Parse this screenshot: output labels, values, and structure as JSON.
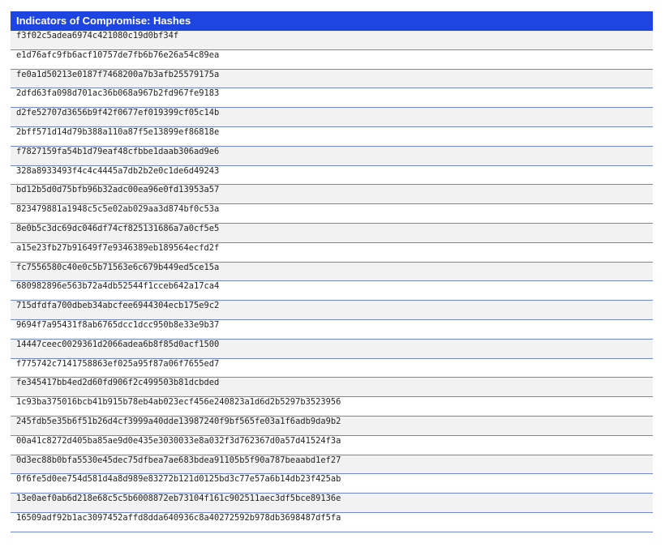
{
  "table": {
    "title": "Indicators of Compromise: Hashes",
    "header_color": "#1f45e0",
    "rows": [
      "f3f02c5adea6974c421080c19d0bf34f",
      "e1d76afc9fb6acf10757de7fb6b76e26a54c89ea",
      "fe0a1d50213e0187f7468200a7b3afb25579175a",
      "2dfd63fa098d701ac36b068a967b2fd967fe9183",
      "d2fe52707d3656b9f42f0677ef019399cf05c14b",
      "2bff571d14d79b388a110a87f5e13899ef86818e",
      "f7827159fa54b1d79eaf48cfbbe1daab306ad9e6",
      "328a8933493f4c4c4445a7db2b2e0c1de6d49243",
      "bd12b5d0d75bfb96b32adc00ea96e0fd13953a57",
      "823479881a1948c5c5e02ab029aa3d874bf0c53a",
      "8e0b5c3dc69dc046df74cf825131686a7a0cf5e5",
      "a15e23fb27b91649f7e9346389eb189564ecfd2f",
      "fc7556580c40e0c5b71563e6c679b449ed5ce15a",
      "680982896e563b72a4db52544f1cceb642a17ca4",
      "715dfdfa700dbeb34abcfee6944304ecb175e9c2",
      "9694f7a95431f8ab6765dcc1dcc950b8e33e9b37",
      "14447ceec0029361d2066adea6b8f85d0acf1500",
      "f775742c7141758863ef025a95f87a06f7655ed7",
      "fe345417bb4ed2d60fd906f2c499503b81dcbded",
      "1c93ba375016bcb41b915b78eb4ab023ecf456e240823a1d6d2b5297b3523956",
      "245fdb5e35b6f51b26d4cf3999a40dde13987240f9bf565fe03a1f6adb9da9b2",
      "00a41c8272d405ba85ae9d0e435e3030033e8a032f3d762367d0a57d41524f3a",
      "0d3ec88b0bfa5530e45dec75dfbea7ae683bdea91105b5f90a787beaabd1ef27",
      "0f6fe5d0ee754d581d4a8d989e83272b121d0125bd3c77e57a6b14db23f425ab",
      "13e0aef0ab6d218e68c5c5b6008872eb73104f161c902511aec3df5bce89136e",
      "16509adf92b1ac3097452affd8dda640936c8a40272592b978db3698487df5fa"
    ]
  }
}
